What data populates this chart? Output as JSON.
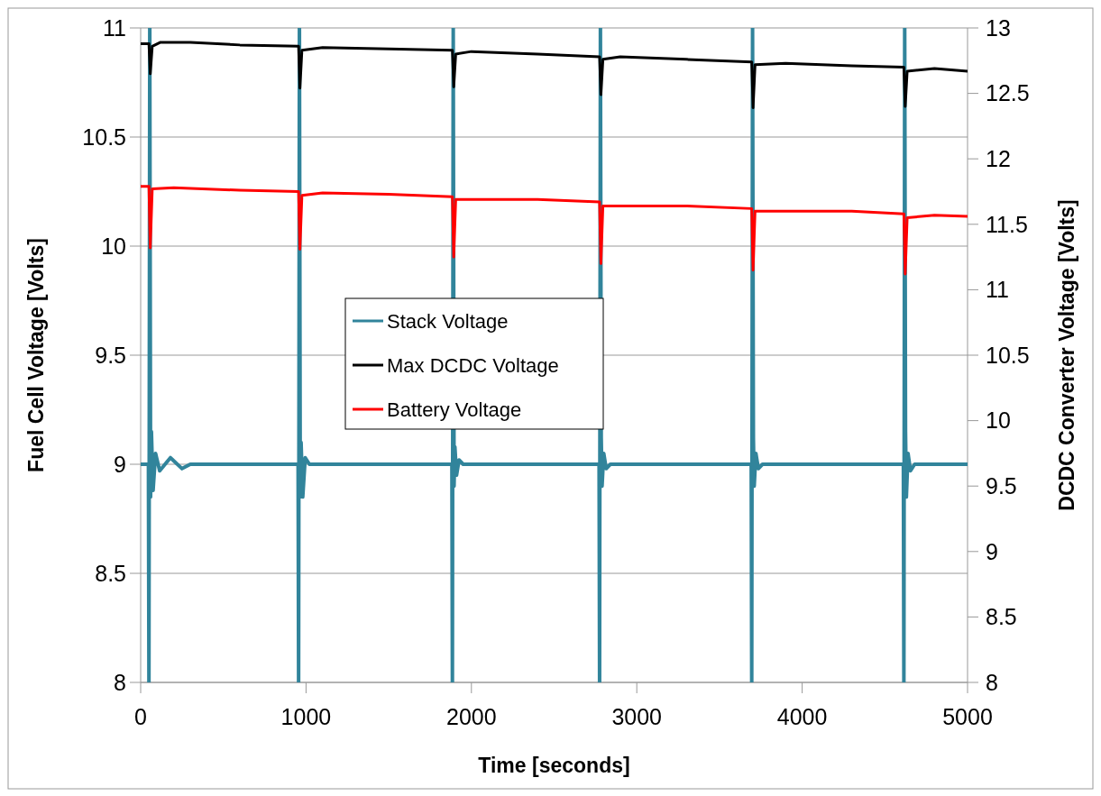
{
  "chart_data": {
    "type": "line",
    "xlabel": "Time [seconds]",
    "ylabel": "Fuel Cell Voltage [Volts]",
    "y2label": "DCDC Converter Voltage [Volts]",
    "xlim": [
      0,
      5000
    ],
    "xticks": [
      0,
      1000,
      2000,
      3000,
      4000,
      5000
    ],
    "ylim": [
      8,
      11
    ],
    "yticks": [
      8,
      8.5,
      9,
      9.5,
      10,
      10.5,
      11
    ],
    "y2lim": [
      8,
      13
    ],
    "y2ticks": [
      8,
      8.5,
      9,
      9.5,
      10,
      10.5,
      11,
      11.5,
      12,
      12.5,
      13
    ],
    "grid": "y",
    "legend": "left",
    "marker": "none",
    "line_style": "solid",
    "series": [
      {
        "name": "Stack Voltage",
        "color": "#31849b",
        "x": [
          0,
          47,
          50,
          55,
          60,
          65,
          75,
          90,
          115,
          180,
          250,
          300,
          400,
          952,
          955,
          960,
          965,
          970,
          980,
          995,
          1020,
          1200,
          1882,
          1885,
          1890,
          1895,
          1900,
          1910,
          1925,
          1950,
          2772,
          2775,
          2780,
          2785,
          2790,
          2800,
          2815,
          2840,
          3692,
          3695,
          3700,
          3705,
          3710,
          3720,
          3735,
          3760,
          4612,
          4615,
          4620,
          4625,
          4630,
          4640,
          4655,
          4680,
          5000
        ],
        "values": [
          9,
          9,
          8,
          11,
          8.85,
          9.15,
          8.88,
          9.05,
          8.97,
          9.03,
          8.98,
          9,
          9,
          9,
          8,
          11,
          8.85,
          9.1,
          8.85,
          9.03,
          9,
          9,
          9,
          8,
          11,
          8.9,
          9.08,
          8.95,
          9.02,
          9,
          9,
          8,
          11,
          9.12,
          8.9,
          9.05,
          8.98,
          9,
          9,
          8,
          11,
          9.12,
          8.9,
          9.05,
          8.98,
          9,
          9,
          8,
          11,
          9.15,
          8.85,
          9.05,
          8.97,
          9,
          9
        ]
      },
      {
        "name": "Max DCDC Voltage",
        "color": "#000000",
        "axis": "y2",
        "x": [
          0,
          50,
          58,
          70,
          120,
          300,
          600,
          955,
          963,
          975,
          1100,
          1500,
          1885,
          1893,
          1905,
          2000,
          2400,
          2775,
          2783,
          2795,
          2900,
          3300,
          3695,
          3703,
          3715,
          3900,
          4300,
          4615,
          4623,
          4635,
          4800,
          5000
        ],
        "values": [
          12.88,
          12.88,
          12.65,
          12.86,
          12.89,
          12.89,
          12.87,
          12.86,
          12.54,
          12.83,
          12.85,
          12.84,
          12.83,
          12.55,
          12.8,
          12.82,
          12.8,
          12.78,
          12.49,
          12.76,
          12.78,
          12.76,
          12.74,
          12.39,
          12.72,
          12.73,
          12.71,
          12.7,
          12.4,
          12.67,
          12.69,
          12.67
        ]
      },
      {
        "name": "Battery Voltage",
        "color": "#ff0000",
        "axis": "y2",
        "x": [
          0,
          50,
          58,
          70,
          200,
          600,
          955,
          963,
          975,
          1100,
          1500,
          1885,
          1893,
          1905,
          2400,
          2775,
          2783,
          2795,
          3300,
          3695,
          3703,
          3715,
          4300,
          4615,
          4623,
          4635,
          4800,
          5000
        ],
        "values": [
          11.79,
          11.79,
          11.32,
          11.77,
          11.78,
          11.76,
          11.75,
          11.31,
          11.72,
          11.74,
          11.73,
          11.71,
          11.25,
          11.69,
          11.69,
          11.67,
          11.2,
          11.64,
          11.64,
          11.62,
          11.15,
          11.6,
          11.6,
          11.58,
          11.12,
          11.55,
          11.57,
          11.56
        ]
      }
    ]
  }
}
